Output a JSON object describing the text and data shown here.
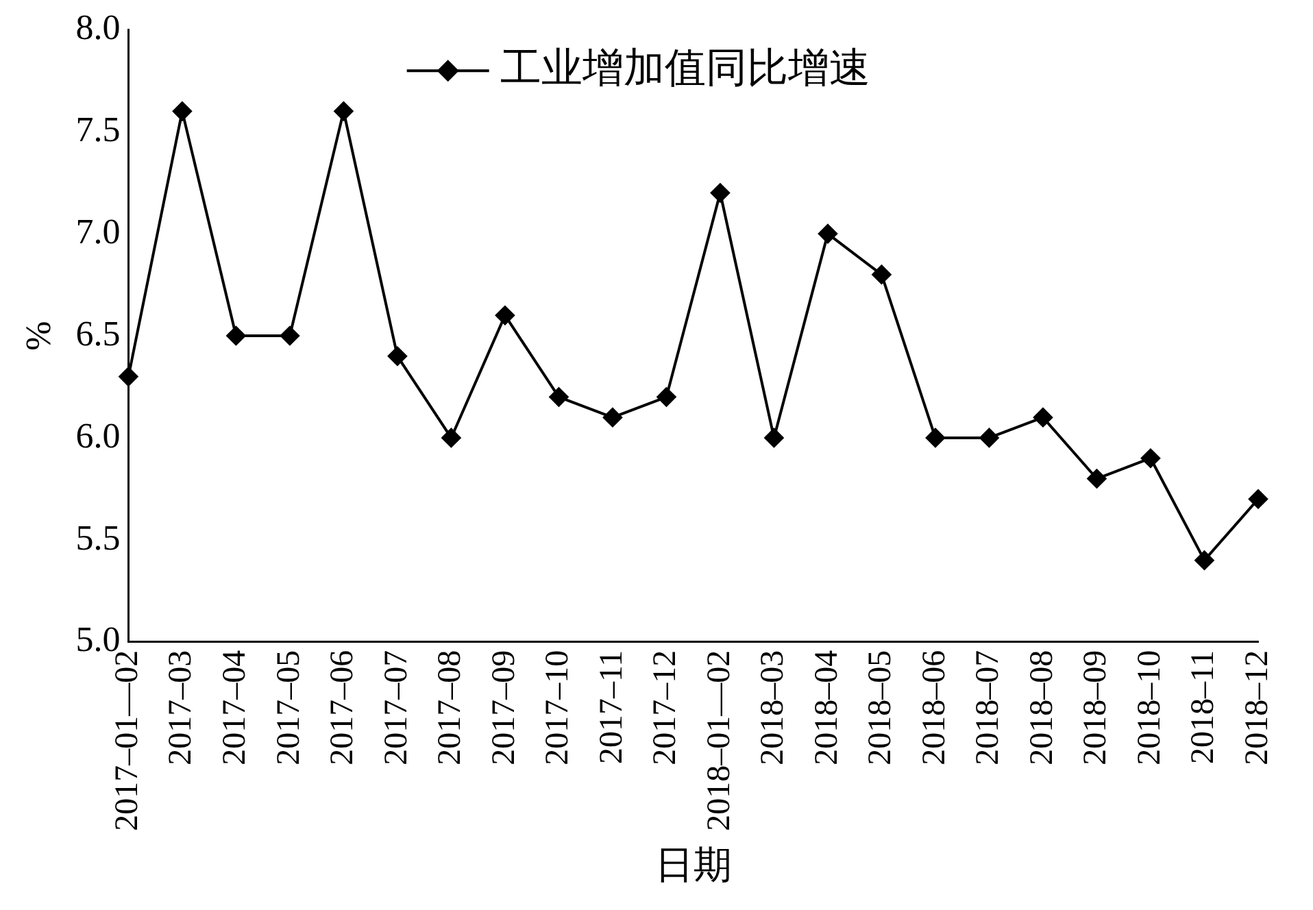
{
  "chart_data": {
    "type": "line",
    "xlabel": "日期",
    "ylabel": "%",
    "categories": [
      "2017–01—02",
      "2017–03",
      "2017–04",
      "2017–05",
      "2017–06",
      "2017–07",
      "2017–08",
      "2017–09",
      "2017–10",
      "2017–11",
      "2017–12",
      "2018–01—02",
      "2018–03",
      "2018–04",
      "2018–05",
      "2018–06",
      "2018–07",
      "2018–08",
      "2018–09",
      "2018–10",
      "2018–11",
      "2018–12"
    ],
    "series": [
      {
        "name": "工业增加值同比增速",
        "color": "#000000",
        "values": [
          6.3,
          7.6,
          6.5,
          6.5,
          7.6,
          6.4,
          6.0,
          6.6,
          6.2,
          6.1,
          6.2,
          7.2,
          6.0,
          7.0,
          6.8,
          6.0,
          6.0,
          6.1,
          5.8,
          5.9,
          5.4,
          5.7
        ]
      }
    ],
    "ylim": [
      5.0,
      8.0
    ],
    "yticks": [
      {
        "value": 5,
        "label": "5.0"
      },
      {
        "value": 5.5,
        "label": "5.5"
      },
      {
        "value": 6,
        "label": "6.0"
      },
      {
        "value": 6.5,
        "label": "6.5"
      },
      {
        "value": 7,
        "label": "7.0"
      },
      {
        "value": 7.5,
        "label": "7.5"
      },
      {
        "value": 8,
        "label": "8.0"
      }
    ],
    "grid": false,
    "legend": "top",
    "marker": "diamond",
    "line_style": "solid"
  }
}
